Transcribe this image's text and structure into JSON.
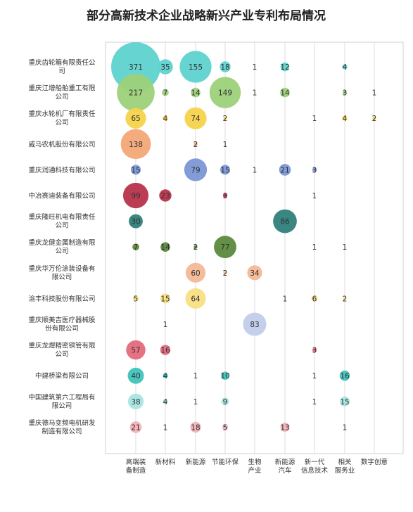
{
  "chart_data": {
    "type": "bubble",
    "title": "部分高新技术企业战略新兴产业专利布局情况",
    "categories_x": [
      [
        "高端装",
        "备制造"
      ],
      [
        "新材料"
      ],
      [
        "新能源"
      ],
      [
        "节能环保"
      ],
      [
        "生物",
        "产业"
      ],
      [
        "新能源",
        "汽车"
      ],
      [
        "新一代",
        "信息技术"
      ],
      [
        "相关",
        "服务业"
      ],
      [
        "数字创意"
      ]
    ],
    "companies": [
      {
        "name": [
          "重庆齿轮箱有限责任公",
          "司"
        ],
        "color": "#5ed3cf",
        "values": [
          371,
          35,
          155,
          18,
          1,
          12,
          null,
          4,
          null
        ]
      },
      {
        "name": [
          "重庆江增船舶重工有限",
          "公司"
        ],
        "color": "#9cd17a",
        "values": [
          217,
          7,
          14,
          149,
          1,
          14,
          null,
          3,
          1
        ]
      },
      {
        "name": [
          "重庆水轮机厂有限责任",
          "公司"
        ],
        "color": "#f7d34b",
        "values": [
          65,
          4,
          74,
          2,
          null,
          null,
          1,
          4,
          2
        ]
      },
      {
        "name": [
          "威马农机股份有限公司"
        ],
        "color": "#f3a878",
        "values": [
          138,
          null,
          2,
          1,
          null,
          null,
          null,
          null,
          null
        ]
      },
      {
        "name": [
          "重庆润通科技有限公司"
        ],
        "color": "#7b97d6",
        "values": [
          15,
          null,
          79,
          15,
          1,
          21,
          3,
          null,
          null
        ]
      },
      {
        "name": [
          "中冶赛迪装备有限公司"
        ],
        "color": "#b7334a",
        "values": [
          99,
          23,
          null,
          3,
          null,
          null,
          1,
          null,
          null
        ]
      },
      {
        "name": [
          "重庆隆旺机电有限责任",
          "公司"
        ],
        "color": "#2f7f7a",
        "values": [
          30,
          null,
          null,
          null,
          null,
          86,
          null,
          null,
          null
        ]
      },
      {
        "name": [
          "重庆龙健金属制造有限",
          "公司"
        ],
        "color": "#5b8a3c",
        "values": [
          7,
          14,
          2,
          77,
          null,
          null,
          1,
          1,
          null
        ]
      },
      {
        "name": [
          "重庆华万伦涂装设备有",
          "限公司"
        ],
        "color": "#f3b894",
        "values": [
          null,
          null,
          60,
          2,
          34,
          null,
          null,
          null,
          null
        ]
      },
      {
        "name": [
          "渝丰科技股份有限公司"
        ],
        "color": "#f8df82",
        "values": [
          5,
          15,
          64,
          null,
          null,
          1,
          6,
          2,
          null
        ]
      },
      {
        "name": [
          "重庆顺美吉医疗器械股",
          "份有限公司"
        ],
        "color": "#c1cdea",
        "values": [
          null,
          1,
          null,
          null,
          83,
          null,
          null,
          null,
          null
        ]
      },
      {
        "name": [
          "重庆龙煜精密铜管有限",
          "公司"
        ],
        "color": "#e46a7c",
        "values": [
          57,
          16,
          null,
          null,
          null,
          null,
          3,
          null,
          null
        ]
      },
      {
        "name": [
          "中建桥梁有限公司"
        ],
        "color": "#41c3bb",
        "values": [
          40,
          4,
          1,
          10,
          null,
          null,
          1,
          16,
          null
        ]
      },
      {
        "name": [
          "中国建筑第六工程局有",
          "限公司"
        ],
        "color": "#a9e6e1",
        "values": [
          38,
          4,
          1,
          9,
          null,
          null,
          1,
          15,
          null
        ]
      },
      {
        "name": [
          "重庆德马变频电机研发",
          "制造有限公司"
        ],
        "color": "#f2b2b8",
        "values": [
          21,
          1,
          18,
          5,
          null,
          13,
          null,
          1,
          null
        ]
      }
    ],
    "grid": true,
    "legend": "none"
  }
}
